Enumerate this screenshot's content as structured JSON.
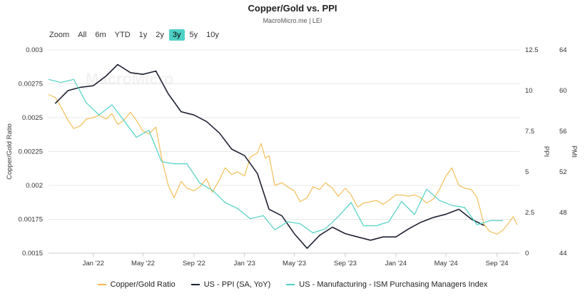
{
  "header": {
    "title": "Copper/Gold vs. PPI",
    "subtitle": "MacroMicro.me | LEI",
    "watermark": "MacroMicro"
  },
  "range_selector": {
    "zoom_label": "Zoom",
    "buttons": [
      "All",
      "6m",
      "YTD",
      "1y",
      "2y",
      "3y",
      "5y",
      "10y"
    ],
    "active": "3y"
  },
  "colors": {
    "copper_gold": "#F2B94B",
    "ppi": "#1F2233",
    "ism": "#4FD1C5",
    "active_range": "#4FD1C5",
    "grid": "#E8E8E8"
  },
  "chart_data": {
    "type": "line",
    "title": "Copper/Gold vs. PPI",
    "subtitle": "MacroMicro.me | LEI",
    "x_range": [
      "2021-09-15",
      "2024-10-25"
    ],
    "x_ticks": [
      {
        "label": "Jan '22",
        "date": "2022-01-01"
      },
      {
        "label": "May '22",
        "date": "2022-05-01"
      },
      {
        "label": "Sep '22",
        "date": "2022-09-01"
      },
      {
        "label": "Jan '23",
        "date": "2023-01-01"
      },
      {
        "label": "May '23",
        "date": "2023-05-01"
      },
      {
        "label": "Sep '23",
        "date": "2023-09-01"
      },
      {
        "label": "Jan '24",
        "date": "2024-01-01"
      },
      {
        "label": "May '24",
        "date": "2024-05-01"
      },
      {
        "label": "Sep '24",
        "date": "2024-09-01"
      }
    ],
    "axes": {
      "left": {
        "label": "Copper/Gold Ratio",
        "min": 0.0015,
        "max": 0.003,
        "ticks": [
          "0.0015",
          "0.00175",
          "0.002",
          "0.00225",
          "0.0025",
          "0.00275",
          "0.003"
        ]
      },
      "ppi": {
        "label": "PPI",
        "min": 0,
        "max": 12.5,
        "ticks": [
          "0",
          "2.5",
          "5",
          "7.5",
          "10",
          "12.5"
        ]
      },
      "pmi": {
        "label": "PMI",
        "min": 44,
        "max": 64,
        "ticks": [
          "44",
          "48",
          "52",
          "56",
          "60",
          "64"
        ]
      }
    },
    "grid": true,
    "legend_position": "bottom",
    "series": [
      {
        "name": "Copper/Gold Ratio",
        "axis": "left",
        "points": [
          [
            "2021-09-15",
            0.00267
          ],
          [
            "2021-10-01",
            0.00265
          ],
          [
            "2021-10-15",
            0.00258
          ],
          [
            "2021-11-01",
            0.00248
          ],
          [
            "2021-11-15",
            0.00242
          ],
          [
            "2021-12-01",
            0.00244
          ],
          [
            "2021-12-15",
            0.00249
          ],
          [
            "2022-01-01",
            0.0025
          ],
          [
            "2022-01-15",
            0.00252
          ],
          [
            "2022-02-01",
            0.00249
          ],
          [
            "2022-02-15",
            0.00253
          ],
          [
            "2022-03-01",
            0.00245
          ],
          [
            "2022-03-15",
            0.00248
          ],
          [
            "2022-04-01",
            0.00254
          ],
          [
            "2022-04-15",
            0.00248
          ],
          [
            "2022-05-01",
            0.0024
          ],
          [
            "2022-05-15",
            0.00238
          ],
          [
            "2022-06-01",
            0.00243
          ],
          [
            "2022-06-15",
            0.0022
          ],
          [
            "2022-07-01",
            0.002
          ],
          [
            "2022-07-15",
            0.00191
          ],
          [
            "2022-08-01",
            0.00203
          ],
          [
            "2022-08-15",
            0.00198
          ],
          [
            "2022-09-01",
            0.00196
          ],
          [
            "2022-09-15",
            0.00199
          ],
          [
            "2022-10-01",
            0.00205
          ],
          [
            "2022-10-15",
            0.00195
          ],
          [
            "2022-11-01",
            0.00204
          ],
          [
            "2022-11-15",
            0.00213
          ],
          [
            "2022-12-01",
            0.00208
          ],
          [
            "2022-12-15",
            0.0021
          ],
          [
            "2023-01-01",
            0.00207
          ],
          [
            "2023-01-15",
            0.00221
          ],
          [
            "2023-02-01",
            0.00224
          ],
          [
            "2023-02-10",
            0.00231
          ],
          [
            "2023-02-20",
            0.0022
          ],
          [
            "2023-03-01",
            0.00222
          ],
          [
            "2023-03-15",
            0.002
          ],
          [
            "2023-04-01",
            0.00202
          ],
          [
            "2023-04-15",
            0.00199
          ],
          [
            "2023-05-01",
            0.00196
          ],
          [
            "2023-05-15",
            0.00188
          ],
          [
            "2023-06-01",
            0.00191
          ],
          [
            "2023-06-15",
            0.00199
          ],
          [
            "2023-07-01",
            0.00197
          ],
          [
            "2023-07-15",
            0.00202
          ],
          [
            "2023-08-01",
            0.00198
          ],
          [
            "2023-08-15",
            0.00192
          ],
          [
            "2023-09-01",
            0.00198
          ],
          [
            "2023-09-15",
            0.00193
          ],
          [
            "2023-10-01",
            0.00184
          ],
          [
            "2023-10-15",
            0.00187
          ],
          [
            "2023-11-01",
            0.00188
          ],
          [
            "2023-11-15",
            0.00189
          ],
          [
            "2023-12-01",
            0.00186
          ],
          [
            "2023-12-15",
            0.00189
          ],
          [
            "2024-01-01",
            0.00193
          ],
          [
            "2024-01-15",
            0.00193
          ],
          [
            "2024-02-01",
            0.00192
          ],
          [
            "2024-02-15",
            0.00193
          ],
          [
            "2024-03-01",
            0.00191
          ],
          [
            "2024-03-15",
            0.00187
          ],
          [
            "2024-04-01",
            0.0019
          ],
          [
            "2024-04-15",
            0.00197
          ],
          [
            "2024-05-01",
            0.00207
          ],
          [
            "2024-05-15",
            0.00213
          ],
          [
            "2024-06-01",
            0.002
          ],
          [
            "2024-06-15",
            0.00198
          ],
          [
            "2024-07-01",
            0.00197
          ],
          [
            "2024-07-15",
            0.00191
          ],
          [
            "2024-08-01",
            0.00171
          ],
          [
            "2024-08-15",
            0.00166
          ],
          [
            "2024-09-01",
            0.00164
          ],
          [
            "2024-09-15",
            0.00167
          ],
          [
            "2024-10-01",
            0.00173
          ],
          [
            "2024-10-10",
            0.00177
          ],
          [
            "2024-10-20",
            0.00171
          ]
        ]
      },
      {
        "name": "US - PPI (SA, YoY)",
        "axis": "ppi",
        "points": [
          [
            "2021-10-01",
            9.2
          ],
          [
            "2021-11-01",
            10.0
          ],
          [
            "2021-12-01",
            10.2
          ],
          [
            "2022-01-01",
            10.3
          ],
          [
            "2022-02-01",
            10.9
          ],
          [
            "2022-03-01",
            11.6
          ],
          [
            "2022-04-01",
            11.1
          ],
          [
            "2022-05-01",
            11.0
          ],
          [
            "2022-06-01",
            11.2
          ],
          [
            "2022-07-01",
            9.8
          ],
          [
            "2022-08-01",
            8.7
          ],
          [
            "2022-09-01",
            8.5
          ],
          [
            "2022-10-01",
            8.1
          ],
          [
            "2022-11-01",
            7.4
          ],
          [
            "2022-12-01",
            6.4
          ],
          [
            "2023-01-01",
            6.0
          ],
          [
            "2023-02-01",
            4.9
          ],
          [
            "2023-03-01",
            2.7
          ],
          [
            "2023-04-01",
            2.3
          ],
          [
            "2023-05-01",
            1.2
          ],
          [
            "2023-06-01",
            0.3
          ],
          [
            "2023-07-01",
            1.1
          ],
          [
            "2023-08-01",
            1.6
          ],
          [
            "2023-09-01",
            1.2
          ],
          [
            "2023-10-01",
            1.0
          ],
          [
            "2023-11-01",
            0.8
          ],
          [
            "2023-12-01",
            1.0
          ],
          [
            "2024-01-01",
            1.0
          ],
          [
            "2024-02-01",
            1.5
          ],
          [
            "2024-03-01",
            1.9
          ],
          [
            "2024-04-01",
            2.2
          ],
          [
            "2024-05-01",
            2.4
          ],
          [
            "2024-06-01",
            2.7
          ],
          [
            "2024-07-01",
            2.1
          ],
          [
            "2024-08-01",
            1.7
          ]
        ]
      },
      {
        "name": "US - Manufacturing - ISM Purchasing Managers Index",
        "axis": "pmi",
        "points": [
          [
            "2021-09-15",
            61.1
          ],
          [
            "2021-10-15",
            60.8
          ],
          [
            "2021-11-15",
            61.1
          ],
          [
            "2021-12-15",
            58.8
          ],
          [
            "2022-01-15",
            57.6
          ],
          [
            "2022-02-15",
            58.6
          ],
          [
            "2022-03-15",
            57.1
          ],
          [
            "2022-04-15",
            55.4
          ],
          [
            "2022-05-15",
            56.1
          ],
          [
            "2022-06-15",
            53.0
          ],
          [
            "2022-07-15",
            52.8
          ],
          [
            "2022-08-15",
            52.8
          ],
          [
            "2022-09-15",
            50.9
          ],
          [
            "2022-10-15",
            50.2
          ],
          [
            "2022-11-15",
            49.0
          ],
          [
            "2022-12-15",
            48.4
          ],
          [
            "2023-01-15",
            47.4
          ],
          [
            "2023-02-15",
            47.7
          ],
          [
            "2023-03-15",
            46.3
          ],
          [
            "2023-04-15",
            47.1
          ],
          [
            "2023-05-15",
            46.9
          ],
          [
            "2023-06-15",
            46.0
          ],
          [
            "2023-07-15",
            46.4
          ],
          [
            "2023-08-15",
            47.6
          ],
          [
            "2023-09-15",
            49.0
          ],
          [
            "2023-10-15",
            46.7
          ],
          [
            "2023-11-15",
            46.7
          ],
          [
            "2023-12-15",
            47.1
          ],
          [
            "2024-01-15",
            49.1
          ],
          [
            "2024-02-15",
            47.8
          ],
          [
            "2024-03-15",
            50.3
          ],
          [
            "2024-04-15",
            49.2
          ],
          [
            "2024-05-15",
            48.7
          ],
          [
            "2024-06-15",
            48.5
          ],
          [
            "2024-07-15",
            46.8
          ],
          [
            "2024-08-15",
            47.2
          ],
          [
            "2024-09-15",
            47.2
          ]
        ]
      }
    ]
  }
}
